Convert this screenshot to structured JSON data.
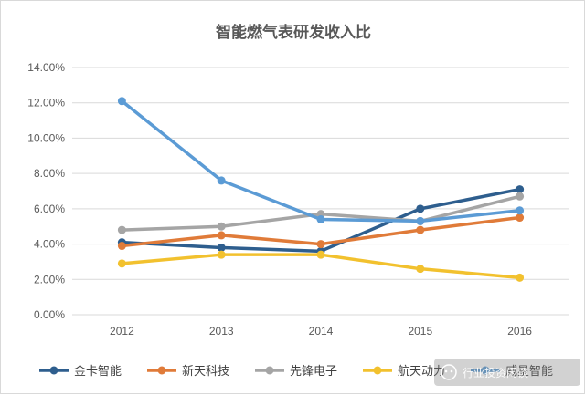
{
  "chart_data": {
    "type": "line",
    "title": "智能燃气表研发收入比",
    "xlabel": "",
    "ylabel": "",
    "categories": [
      "2012",
      "2013",
      "2014",
      "2015",
      "2016"
    ],
    "ylim": [
      0,
      14
    ],
    "yticks": [
      0,
      2,
      4,
      6,
      8,
      10,
      12,
      14
    ],
    "ytick_labels": [
      "0.00%",
      "2.00%",
      "4.00%",
      "6.00%",
      "8.00%",
      "10.00%",
      "12.00%",
      "14.00%"
    ],
    "grid": true,
    "legend": "bottom",
    "series": [
      {
        "name": "金卡智能",
        "color": "#2e5e8e",
        "values": [
          4.1,
          3.8,
          3.6,
          6.0,
          7.1
        ]
      },
      {
        "name": "新天科技",
        "color": "#e07b39",
        "values": [
          3.9,
          4.5,
          4.0,
          4.8,
          5.5
        ]
      },
      {
        "name": "先锋电子",
        "color": "#a5a5a5",
        "values": [
          4.8,
          5.0,
          5.7,
          5.3,
          6.7
        ]
      },
      {
        "name": "航天动力",
        "color": "#f2c12e",
        "values": [
          2.9,
          3.4,
          3.4,
          2.6,
          2.1
        ]
      },
      {
        "name": "威星智能",
        "color": "#5b9bd5",
        "values": [
          12.1,
          7.6,
          5.4,
          5.3,
          5.9
        ]
      }
    ]
  },
  "watermark": {
    "text": "行业投资闲谈"
  }
}
